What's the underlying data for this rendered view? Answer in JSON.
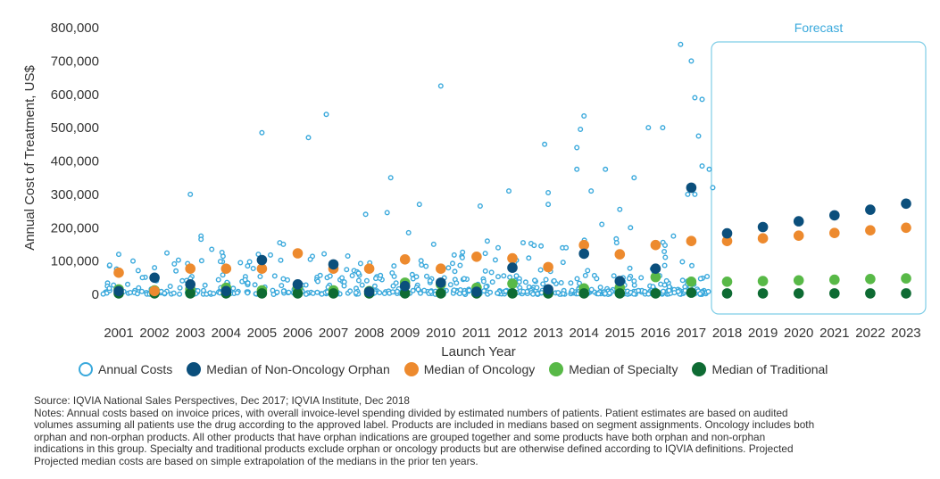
{
  "chart_data": {
    "type": "scatter",
    "ylabel": "Annual Cost of Treatment, US$",
    "xlabel": "Launch Year",
    "ylim": [
      0,
      800000
    ],
    "yticks": [
      0,
      100000,
      200000,
      300000,
      400000,
      500000,
      600000,
      700000,
      800000
    ],
    "ytick_labels": [
      "0",
      "100,000",
      "200,000",
      "300,000",
      "400,000",
      "500,000",
      "600,000",
      "700,000",
      "800,000"
    ],
    "categories": [
      "2001",
      "2002",
      "2003",
      "2004",
      "2005",
      "2006",
      "2007",
      "2008",
      "2009",
      "2010",
      "2011",
      "2012",
      "2013",
      "2014",
      "2015",
      "2016",
      "2017",
      "2018",
      "2019",
      "2020",
      "2021",
      "2022",
      "2023"
    ],
    "forecast_label": "Forecast",
    "forecast_years": [
      "2018",
      "2023"
    ],
    "annual_costs_highlights": [
      {
        "x": 2001,
        "y": 120000
      },
      {
        "x": 2001.4,
        "y": 100000
      },
      {
        "x": 2002.0,
        "y": 80000
      },
      {
        "x": 2002.6,
        "y": 70000
      },
      {
        "x": 2003.0,
        "y": 300000
      },
      {
        "x": 2003.3,
        "y": 175000
      },
      {
        "x": 2003.3,
        "y": 165000
      },
      {
        "x": 2003.6,
        "y": 135000
      },
      {
        "x": 2004.4,
        "y": 95000
      },
      {
        "x": 2004.9,
        "y": 120000
      },
      {
        "x": 2005.0,
        "y": 485000
      },
      {
        "x": 2005.5,
        "y": 155000
      },
      {
        "x": 2005.6,
        "y": 150000
      },
      {
        "x": 2006.3,
        "y": 470000
      },
      {
        "x": 2006.8,
        "y": 540000
      },
      {
        "x": 2007.4,
        "y": 115000
      },
      {
        "x": 2007.9,
        "y": 240000
      },
      {
        "x": 2008.5,
        "y": 245000
      },
      {
        "x": 2008.6,
        "y": 350000
      },
      {
        "x": 2009.1,
        "y": 185000
      },
      {
        "x": 2009.4,
        "y": 270000
      },
      {
        "x": 2009.8,
        "y": 150000
      },
      {
        "x": 2010.0,
        "y": 625000
      },
      {
        "x": 2010.6,
        "y": 110000
      },
      {
        "x": 2011.1,
        "y": 265000
      },
      {
        "x": 2011.3,
        "y": 160000
      },
      {
        "x": 2011.6,
        "y": 140000
      },
      {
        "x": 2011.9,
        "y": 310000
      },
      {
        "x": 2012.3,
        "y": 155000
      },
      {
        "x": 2012.8,
        "y": 145000
      },
      {
        "x": 2012.9,
        "y": 450000
      },
      {
        "x": 2013.0,
        "y": 305000
      },
      {
        "x": 2013.0,
        "y": 270000
      },
      {
        "x": 2013.5,
        "y": 140000
      },
      {
        "x": 2013.8,
        "y": 440000
      },
      {
        "x": 2013.8,
        "y": 375000
      },
      {
        "x": 2013.9,
        "y": 495000
      },
      {
        "x": 2014.0,
        "y": 535000
      },
      {
        "x": 2014.2,
        "y": 310000
      },
      {
        "x": 2014.5,
        "y": 210000
      },
      {
        "x": 2014.6,
        "y": 375000
      },
      {
        "x": 2015.0,
        "y": 255000
      },
      {
        "x": 2015.4,
        "y": 350000
      },
      {
        "x": 2015.3,
        "y": 200000
      },
      {
        "x": 2015.8,
        "y": 500000
      },
      {
        "x": 2016.2,
        "y": 500000
      },
      {
        "x": 2016.5,
        "y": 175000
      },
      {
        "x": 2016.7,
        "y": 750000
      },
      {
        "x": 2016.9,
        "y": 300000
      },
      {
        "x": 2017.0,
        "y": 700000
      },
      {
        "x": 2017.1,
        "y": 590000
      },
      {
        "x": 2017.2,
        "y": 475000
      },
      {
        "x": 2017.3,
        "y": 585000
      },
      {
        "x": 2017.3,
        "y": 385000
      },
      {
        "x": 2017.5,
        "y": 375000
      },
      {
        "x": 2017.6,
        "y": 320000
      },
      {
        "x": 2017.1,
        "y": 300000
      }
    ],
    "series": [
      {
        "name": "Median of Non-Oncology Orphan",
        "color": "#0b4f7c",
        "points": [
          [
            2001,
            10000
          ],
          [
            2002,
            50000
          ],
          [
            2003,
            30000
          ],
          [
            2004,
            10000
          ],
          [
            2005,
            103000
          ],
          [
            2006,
            30000
          ],
          [
            2007,
            90000
          ],
          [
            2008,
            8000
          ],
          [
            2009,
            25000
          ],
          [
            2010,
            35000
          ],
          [
            2011,
            8000
          ],
          [
            2012,
            80000
          ],
          [
            2013,
            15000
          ],
          [
            2014,
            122000
          ],
          [
            2015,
            40000
          ],
          [
            2016,
            77000
          ],
          [
            2017,
            320000
          ],
          [
            2018,
            183000
          ],
          [
            2019,
            202000
          ],
          [
            2020,
            219000
          ],
          [
            2021,
            237000
          ],
          [
            2022,
            254000
          ],
          [
            2023,
            272000
          ]
        ]
      },
      {
        "name": "Median of Oncology",
        "color": "#ed8a2e",
        "points": [
          [
            2001,
            65000
          ],
          [
            2002,
            10000
          ],
          [
            2003,
            77000
          ],
          [
            2004,
            77000
          ],
          [
            2005,
            77000
          ],
          [
            2006,
            123000
          ],
          [
            2007,
            77000
          ],
          [
            2008,
            77000
          ],
          [
            2009,
            105000
          ],
          [
            2010,
            77000
          ],
          [
            2011,
            113000
          ],
          [
            2012,
            108000
          ],
          [
            2013,
            82000
          ],
          [
            2014,
            148000
          ],
          [
            2015,
            120000
          ],
          [
            2016,
            148000
          ],
          [
            2017,
            160000
          ],
          [
            2018,
            160000
          ],
          [
            2019,
            168000
          ],
          [
            2020,
            176000
          ],
          [
            2021,
            184000
          ],
          [
            2022,
            192000
          ],
          [
            2023,
            200000
          ]
        ]
      },
      {
        "name": "Median of Specialty",
        "color": "#58b947",
        "points": [
          [
            2001,
            15000
          ],
          [
            2002,
            12000
          ],
          [
            2003,
            15000
          ],
          [
            2004,
            20000
          ],
          [
            2005,
            12000
          ],
          [
            2006,
            20000
          ],
          [
            2007,
            12000
          ],
          [
            2008,
            10000
          ],
          [
            2009,
            35000
          ],
          [
            2010,
            30000
          ],
          [
            2011,
            20000
          ],
          [
            2012,
            32000
          ],
          [
            2013,
            10000
          ],
          [
            2014,
            18000
          ],
          [
            2015,
            20000
          ],
          [
            2016,
            52000
          ],
          [
            2017,
            38000
          ],
          [
            2018,
            38000
          ],
          [
            2019,
            40000
          ],
          [
            2020,
            42000
          ],
          [
            2021,
            44000
          ],
          [
            2022,
            46000
          ],
          [
            2023,
            48000
          ]
        ]
      },
      {
        "name": "Median of Traditional",
        "color": "#0e6b33",
        "points": [
          [
            2001,
            3000
          ],
          [
            2002,
            3000
          ],
          [
            2003,
            3000
          ],
          [
            2004,
            3000
          ],
          [
            2005,
            3000
          ],
          [
            2006,
            3000
          ],
          [
            2007,
            3000
          ],
          [
            2008,
            3000
          ],
          [
            2009,
            3000
          ],
          [
            2010,
            3000
          ],
          [
            2011,
            3000
          ],
          [
            2012,
            3000
          ],
          [
            2013,
            3000
          ],
          [
            2014,
            3000
          ],
          [
            2015,
            3000
          ],
          [
            2016,
            3000
          ],
          [
            2017,
            5000
          ],
          [
            2018,
            3000
          ],
          [
            2019,
            3000
          ],
          [
            2020,
            3000
          ],
          [
            2021,
            3000
          ],
          [
            2022,
            3000
          ],
          [
            2023,
            3000
          ]
        ]
      }
    ],
    "legend": [
      {
        "label": "Annual Costs",
        "style": "hollow",
        "color": "#3aa9dc"
      },
      {
        "label": "Median of Non-Oncology Orphan",
        "style": "filled",
        "color": "#0b4f7c"
      },
      {
        "label": "Median of Oncology",
        "style": "filled",
        "color": "#ed8a2e"
      },
      {
        "label": "Median of Specialty",
        "style": "filled",
        "color": "#58b947"
      },
      {
        "label": "Median of Traditional",
        "style": "filled",
        "color": "#0e6b33"
      }
    ],
    "legend_position": "bottom",
    "grid": false
  },
  "source": "Source: IQVIA National Sales Perspectives, Dec 2017; IQVIA Institute, Dec 2018",
  "notes": [
    "Notes: Annual costs based on invoice prices, with overall invoice-level spending divided by estimated numbers of patients. Patient estimates are based on audited",
    "volumes assuming all patients use the drug according to the approved label. Products are included in medians based on segment assignments. Oncology includes both",
    "orphan and non-orphan products. All other products that have orphan indications are grouped together and some products have both orphan and non-orphan",
    "indications in this group. Specialty and traditional products exclude orphan or oncology products but are otherwise defined according to IQVIA definitions. Projected",
    "Projected median costs are based on simple extrapolation of the medians in the prior ten years."
  ]
}
